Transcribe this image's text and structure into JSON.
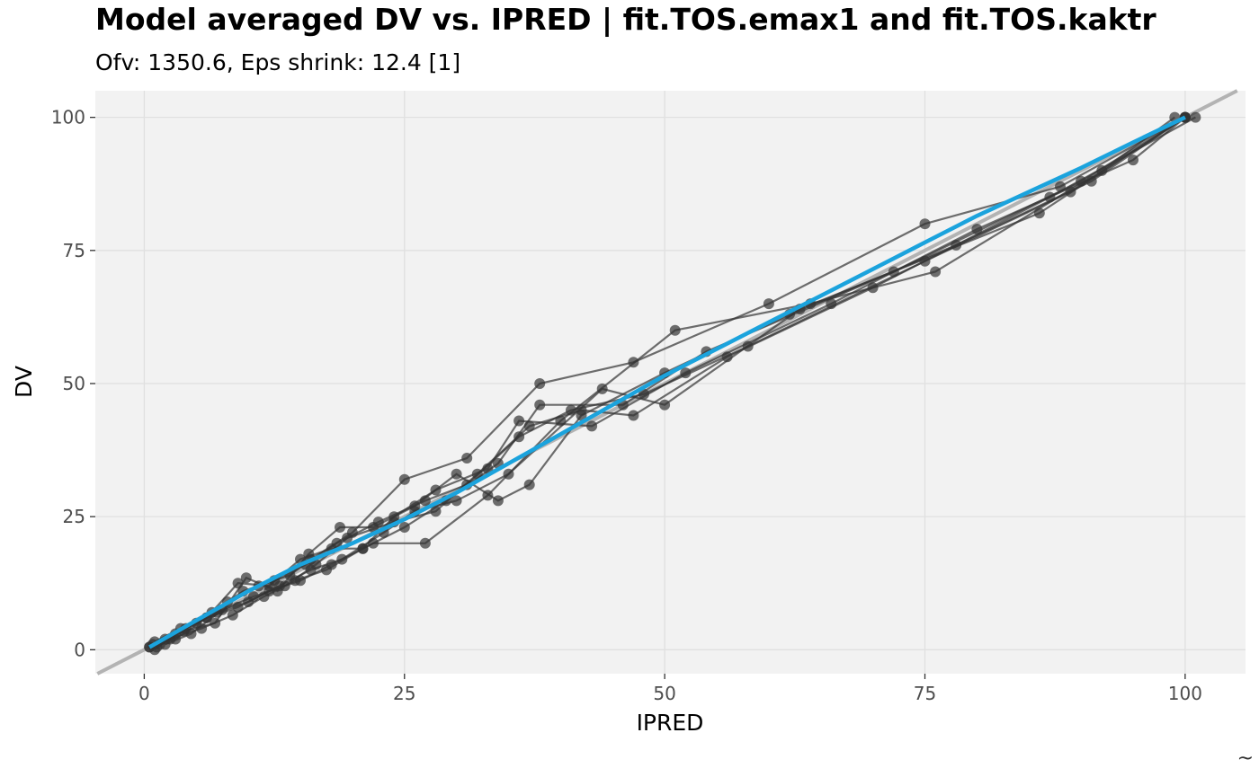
{
  "chart_data": {
    "type": "scatter",
    "title": "Model averaged DV vs. IPRED | fit.TOS.emax1 and fit.TOS.kaktr",
    "subtitle": "Ofv: 1350.6, Eps shrink: 12.4 [1]",
    "xlabel": "IPRED",
    "ylabel": "DV",
    "xlim": [
      -4.7,
      105.8
    ],
    "ylim": [
      -4.5,
      105.0
    ],
    "x_ticks": [
      0,
      25,
      50,
      75,
      100
    ],
    "y_ticks": [
      0,
      25,
      50,
      75,
      100
    ],
    "grid": true,
    "reference_line": {
      "type": "identity",
      "color": "#b3b3b3"
    },
    "smooth_line": {
      "color": "#1ba3dd",
      "x": [
        0.5,
        5,
        10,
        15,
        20,
        25,
        30,
        35,
        40,
        45,
        50,
        55,
        60,
        65,
        70,
        75,
        80,
        85,
        90,
        95,
        100
      ],
      "y": [
        0.5,
        5.5,
        11,
        16,
        20,
        24.5,
        29.5,
        35,
        40.5,
        46,
        51.5,
        56.5,
        61.5,
        66.5,
        71.5,
        76.5,
        81.5,
        86,
        90.5,
        95.3,
        100
      ]
    },
    "point_color": "#333333",
    "subjects": [
      {
        "x": [
          0.5,
          2,
          5,
          8,
          11,
          14,
          16,
          20,
          25,
          31,
          38,
          47,
          60,
          75,
          88,
          100
        ],
        "y": [
          0.5,
          2,
          5,
          9,
          12,
          14,
          17,
          22,
          32,
          36,
          50,
          54,
          65,
          80,
          87,
          100
        ]
      },
      {
        "x": [
          1,
          3,
          6,
          9,
          12,
          15,
          18,
          22,
          27,
          33,
          40,
          51,
          64,
          76,
          92,
          99
        ],
        "y": [
          0,
          3,
          6,
          8,
          11,
          13,
          16,
          20,
          20,
          29,
          43,
          60,
          65,
          71,
          90,
          100
        ]
      },
      {
        "x": [
          1.5,
          4,
          7,
          10,
          13,
          16,
          19,
          23,
          26,
          30,
          35,
          44,
          50,
          63,
          86,
          100
        ],
        "y": [
          1,
          4,
          7,
          9,
          12,
          15,
          17,
          22,
          26,
          28,
          33,
          49,
          46,
          64,
          82,
          100
        ]
      },
      {
        "x": [
          0.5,
          2.5,
          5.5,
          8.5,
          11.5,
          14.5,
          17.5,
          21,
          25,
          29,
          34,
          38,
          46,
          54,
          72,
          90,
          100
        ],
        "y": [
          0.5,
          2,
          4,
          6.5,
          10,
          13,
          15,
          19,
          23,
          28,
          35,
          46,
          46,
          56,
          71,
          88,
          100
        ]
      },
      {
        "x": [
          1,
          3.5,
          6.5,
          9.5,
          12.5,
          15.5,
          18.5,
          22.5,
          27,
          31,
          36,
          41,
          48,
          58,
          75,
          89,
          100
        ],
        "y": [
          1.5,
          4,
          7,
          11,
          13,
          16,
          20,
          24,
          28,
          31,
          40,
          45,
          48,
          57,
          73,
          86,
          100
        ]
      },
      {
        "x": [
          2,
          4.5,
          7.5,
          10.5,
          13.5,
          16.5,
          19.5,
          24,
          28,
          32,
          37,
          42,
          47,
          56,
          70,
          87,
          101
        ],
        "y": [
          1,
          3,
          7.5,
          10,
          12,
          16,
          21,
          24,
          26,
          33,
          42,
          45,
          44,
          55,
          68,
          85,
          100
        ]
      },
      {
        "x": [
          0.8,
          3,
          6,
          9,
          12,
          15,
          18,
          21,
          24,
          28,
          33,
          36,
          43,
          52,
          66,
          80,
          95,
          100
        ],
        "y": [
          1,
          2,
          6,
          12.5,
          12,
          17,
          19,
          19,
          25,
          30,
          34,
          43,
          42,
          52,
          65,
          79,
          92,
          100
        ]
      },
      {
        "x": [
          1.2,
          3.8,
          6.8,
          9.8,
          12.8,
          15.8,
          18.8,
          22,
          26,
          30,
          34,
          37,
          42,
          50,
          62,
          78,
          91,
          100
        ],
        "y": [
          0.5,
          3.5,
          5,
          13.5,
          11,
          18,
          23,
          23,
          27,
          33,
          28,
          31,
          44,
          52,
          63,
          76,
          88,
          100
        ]
      }
    ]
  },
  "corner_glyph": "~"
}
